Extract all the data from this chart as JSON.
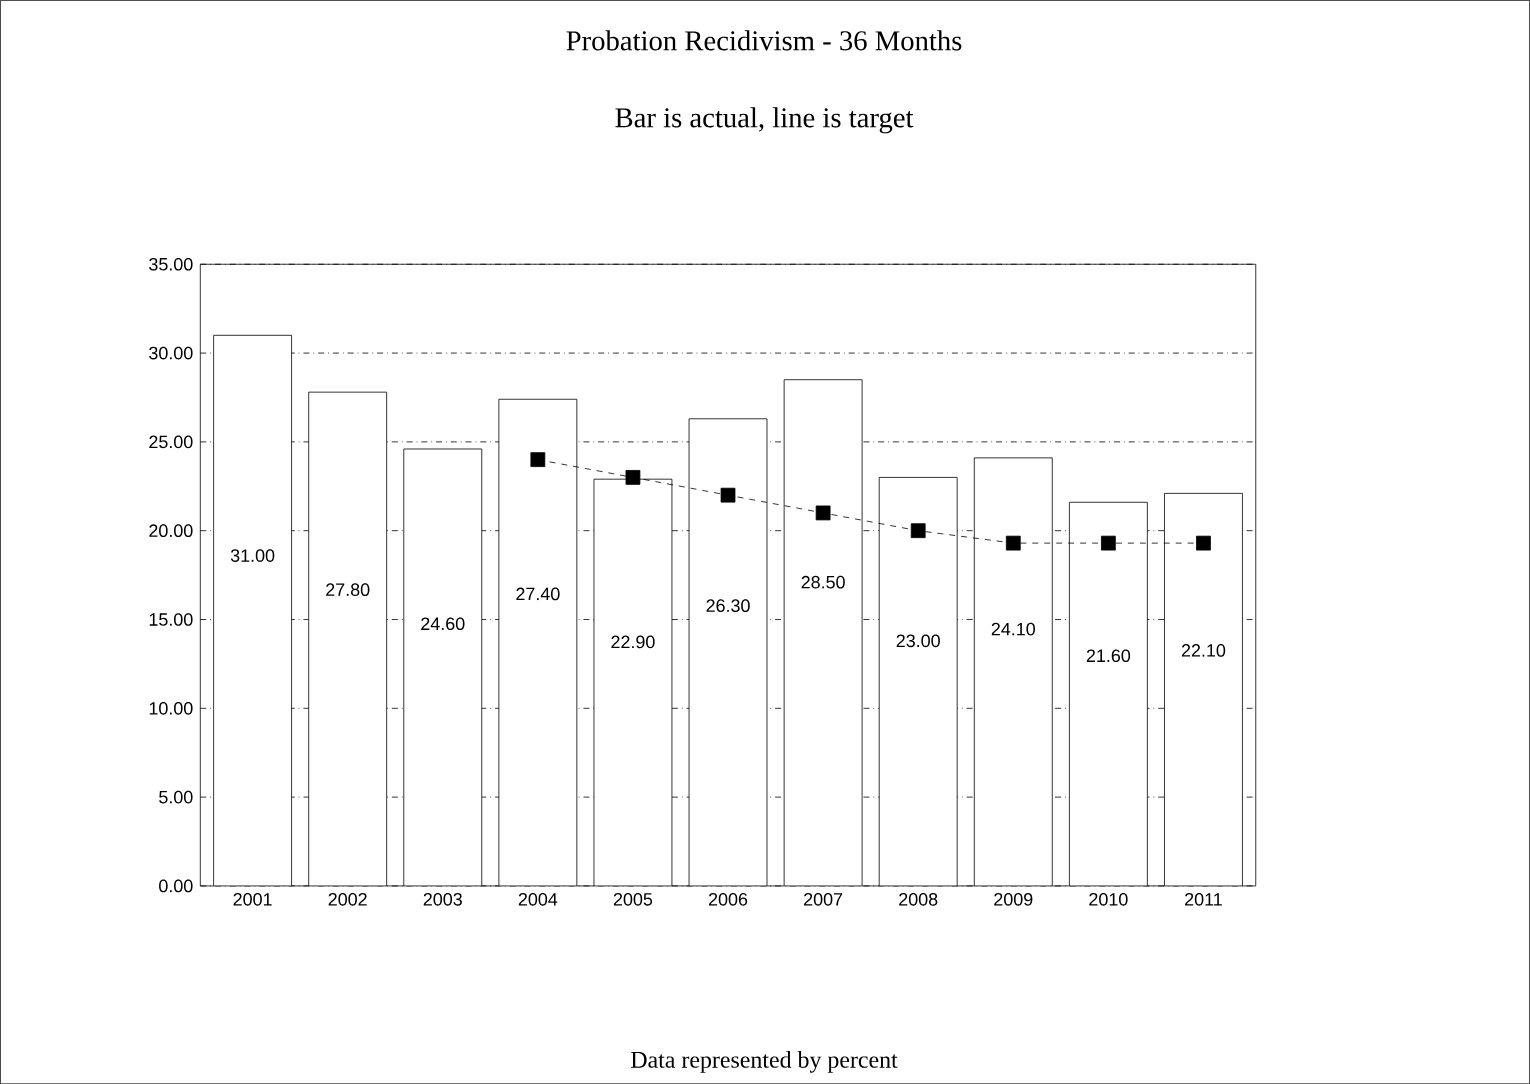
{
  "chart_data": {
    "type": "bar",
    "title": "Probation Recidivism - 36 Months",
    "subtitle": "Bar is actual, line is target",
    "categories": [
      "2001",
      "2002",
      "2003",
      "2004",
      "2005",
      "2006",
      "2007",
      "2008",
      "2009",
      "2010",
      "2011"
    ],
    "series": [
      {
        "color": "#ffffff",
        "values": [
          31.0,
          27.8,
          24.6,
          27.4,
          22.9,
          26.3,
          28.5,
          23.0,
          24.1,
          21.6,
          22.1
        ],
        "value_labels": [
          "31.00",
          "27.80",
          "24.60",
          "27.40",
          "22.90",
          "26.30",
          "28.50",
          "23.00",
          "24.10",
          "21.60",
          "22.10"
        ]
      },
      {
        "type": "line",
        "color": "#000000",
        "marker": "square",
        "line_style": "dashed",
        "values": [
          null,
          null,
          null,
          24,
          23,
          22,
          21,
          20,
          19.3,
          19.3,
          19.3
        ]
      }
    ],
    "ylim": [
      0,
      35
    ],
    "yticks": [
      {
        "value": 0,
        "label": "0.00"
      },
      {
        "value": 5,
        "label": "5.00"
      },
      {
        "value": 10,
        "label": "10.00"
      },
      {
        "value": 15,
        "label": "15.00"
      },
      {
        "value": 20,
        "label": "20.00"
      },
      {
        "value": 25,
        "label": "25.00"
      },
      {
        "value": 30,
        "label": "30.00"
      },
      {
        "value": 35,
        "label": "35.00"
      }
    ],
    "grid": "y",
    "annotations": [
      "Data represented by percent"
    ]
  }
}
